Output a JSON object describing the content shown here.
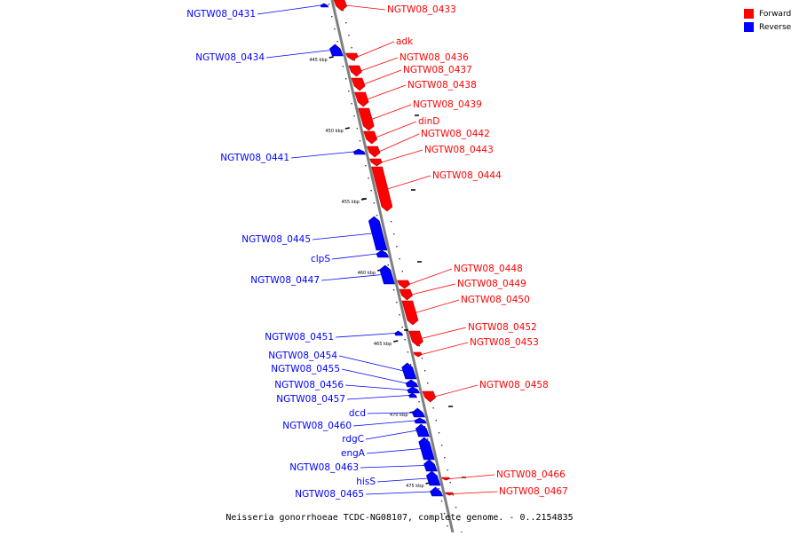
{
  "colors": {
    "forward": "#ff0000",
    "reverse": "#0000ff",
    "backbone": "#808080"
  },
  "legend": [
    {
      "label": "Forward",
      "color": "#ff0000"
    },
    {
      "label": "Reverse",
      "color": "#0000ff"
    }
  ],
  "caption": "Neisseria gonorrhoeae TCDC-NG08107, complete genome. - 0..2154835",
  "tick_labels": [
    "445 kbp",
    "450 kbp",
    "455 kbp",
    "460 kbp",
    "465 kbp",
    "470 kbp",
    "475 kbp"
  ],
  "genes": [
    {
      "name": "NGTW08_0431",
      "strand": "reverse"
    },
    {
      "name": "NGTW08_0433",
      "strand": "forward"
    },
    {
      "name": "adk",
      "strand": "forward"
    },
    {
      "name": "NGTW08_0434",
      "strand": "reverse"
    },
    {
      "name": "NGTW08_0436",
      "strand": "forward"
    },
    {
      "name": "NGTW08_0437",
      "strand": "forward"
    },
    {
      "name": "NGTW08_0438",
      "strand": "forward"
    },
    {
      "name": "NGTW08_0439",
      "strand": "forward"
    },
    {
      "name": "dinD",
      "strand": "forward"
    },
    {
      "name": "NGTW08_0442",
      "strand": "forward"
    },
    {
      "name": "NGTW08_0441",
      "strand": "reverse"
    },
    {
      "name": "NGTW08_0443",
      "strand": "forward"
    },
    {
      "name": "NGTW08_0444",
      "strand": "forward"
    },
    {
      "name": "NGTW08_0445",
      "strand": "reverse"
    },
    {
      "name": "clpS",
      "strand": "reverse"
    },
    {
      "name": "NGTW08_0447",
      "strand": "reverse"
    },
    {
      "name": "NGTW08_0448",
      "strand": "forward"
    },
    {
      "name": "NGTW08_0449",
      "strand": "forward"
    },
    {
      "name": "NGTW08_0450",
      "strand": "forward"
    },
    {
      "name": "NGTW08_0451",
      "strand": "reverse"
    },
    {
      "name": "NGTW08_0452",
      "strand": "forward"
    },
    {
      "name": "NGTW08_0453",
      "strand": "forward"
    },
    {
      "name": "NGTW08_0454",
      "strand": "reverse"
    },
    {
      "name": "NGTW08_0455",
      "strand": "reverse"
    },
    {
      "name": "NGTW08_0456",
      "strand": "reverse"
    },
    {
      "name": "NGTW08_0457",
      "strand": "reverse"
    },
    {
      "name": "NGTW08_0458",
      "strand": "forward"
    },
    {
      "name": "dcd",
      "strand": "reverse"
    },
    {
      "name": "NGTW08_0460",
      "strand": "reverse"
    },
    {
      "name": "rdgC",
      "strand": "reverse"
    },
    {
      "name": "engA",
      "strand": "reverse"
    },
    {
      "name": "NGTW08_0463",
      "strand": "reverse"
    },
    {
      "name": "hisS",
      "strand": "reverse"
    },
    {
      "name": "NGTW08_0465",
      "strand": "reverse"
    },
    {
      "name": "NGTW08_0466",
      "strand": "forward"
    },
    {
      "name": "NGTW08_0467",
      "strand": "forward"
    }
  ]
}
